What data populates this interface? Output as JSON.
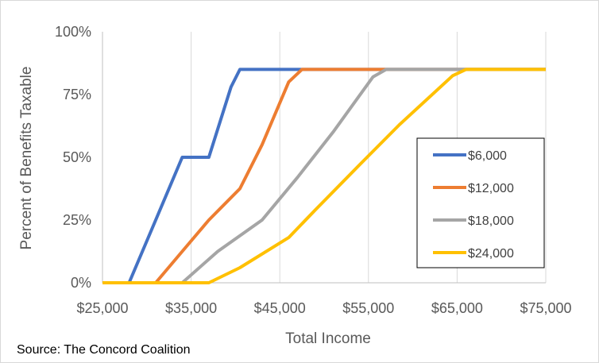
{
  "chart_data": {
    "type": "line",
    "title": "",
    "xlabel": "Total Income",
    "ylabel": "Percent of Benefits Taxable",
    "xlim": [
      25000,
      75000
    ],
    "ylim": [
      0,
      100
    ],
    "x_ticks": [
      25000,
      35000,
      45000,
      55000,
      65000,
      75000
    ],
    "x_tick_labels": [
      "$25,000",
      "$35,000",
      "$45,000",
      "$55,000",
      "$65,000",
      "$75,000"
    ],
    "y_ticks": [
      0,
      25,
      50,
      75,
      100
    ],
    "y_tick_labels": [
      "0%",
      "25%",
      "50%",
      "75%",
      "100%"
    ],
    "grid": "vertical",
    "legend_position": "right",
    "series": [
      {
        "name": "$6,000",
        "color": "#4472C4",
        "points": [
          [
            25000,
            0
          ],
          [
            28000,
            0
          ],
          [
            31000,
            25
          ],
          [
            34000,
            50
          ],
          [
            37000,
            50
          ],
          [
            39500,
            78
          ],
          [
            40500,
            85
          ],
          [
            75000,
            85
          ]
        ]
      },
      {
        "name": "$12,000",
        "color": "#ED7D31",
        "points": [
          [
            25000,
            0
          ],
          [
            31000,
            0
          ],
          [
            34000,
            12.5
          ],
          [
            37000,
            25
          ],
          [
            40500,
            37.5
          ],
          [
            43000,
            55
          ],
          [
            46000,
            80
          ],
          [
            47500,
            85
          ],
          [
            75000,
            85
          ]
        ]
      },
      {
        "name": "$18,000",
        "color": "#A5A5A5",
        "points": [
          [
            25000,
            0
          ],
          [
            34000,
            0
          ],
          [
            38000,
            12.5
          ],
          [
            43000,
            25
          ],
          [
            47000,
            42
          ],
          [
            51000,
            60
          ],
          [
            55500,
            82
          ],
          [
            57000,
            85
          ],
          [
            75000,
            85
          ]
        ]
      },
      {
        "name": "$24,000",
        "color": "#FFC000",
        "points": [
          [
            25000,
            0
          ],
          [
            37000,
            0
          ],
          [
            40500,
            6
          ],
          [
            46000,
            18
          ],
          [
            49000,
            29
          ],
          [
            54000,
            47
          ],
          [
            58500,
            63
          ],
          [
            64500,
            82.5
          ],
          [
            66000,
            85
          ],
          [
            75000,
            85
          ]
        ]
      }
    ]
  },
  "source": "Source: The Concord Coalition",
  "colors": {
    "gridline": "#d9d9d9",
    "axis": "#bfbfbf",
    "text": "#595959"
  }
}
